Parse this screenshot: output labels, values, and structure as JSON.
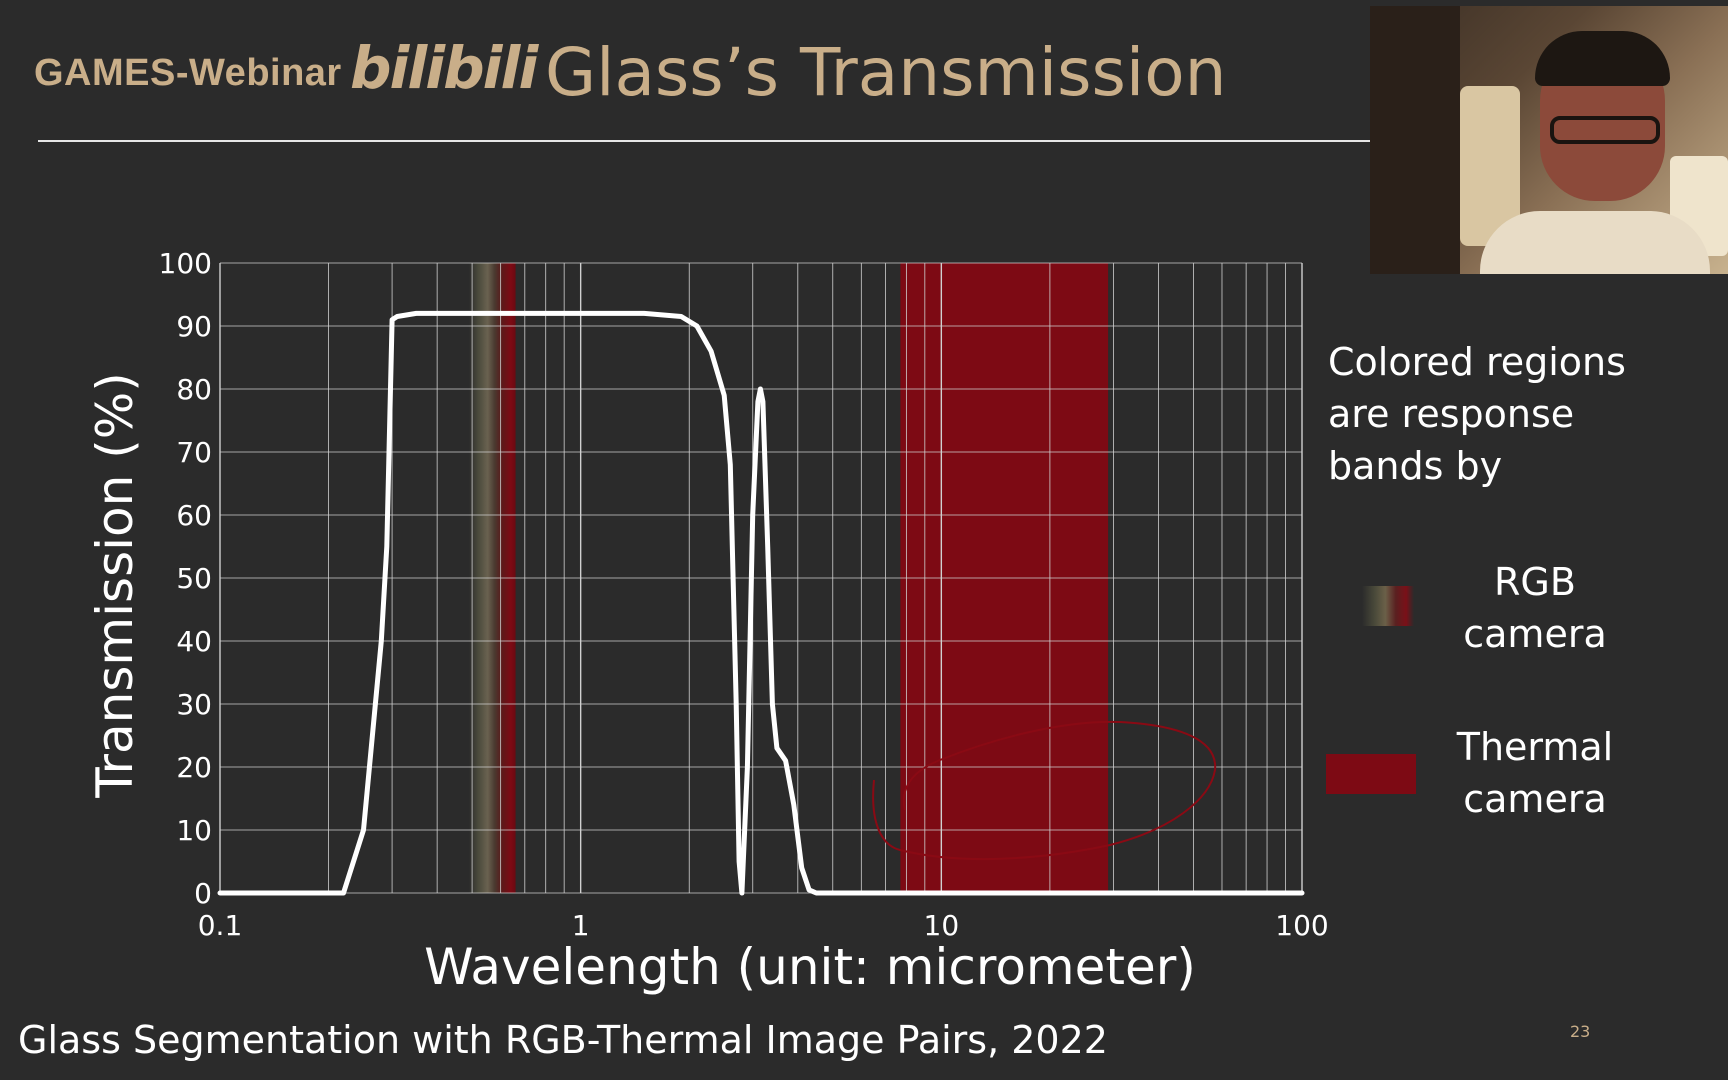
{
  "header": {
    "brand": "GAMES-Webinar",
    "logo": "bilibili",
    "title": "Glass’s Transmission"
  },
  "webcam": {
    "description_icon": "presenter-video-icon"
  },
  "legend": {
    "intro": [
      "Colored regions",
      "are response",
      "bands by"
    ],
    "rgb": [
      "RGB",
      "camera"
    ],
    "thermal": [
      "Thermal",
      "camera"
    ]
  },
  "footer": {
    "citation": "Glass Segmentation with RGB-Thermal Image Pairs, 2022",
    "page": "23"
  },
  "colors": {
    "accent": "#c9ae89",
    "thermal_band": "#7d0a14",
    "curve": "#ffffff",
    "grid": "#d0d0d0",
    "background": "#2b2b2b"
  },
  "chart_data": {
    "type": "line",
    "xscale": "log",
    "xlim": [
      0.1,
      100
    ],
    "ylim": [
      0,
      100
    ],
    "xticks": [
      0.1,
      1,
      10,
      100
    ],
    "xtick_labels": [
      "0.1",
      "1",
      "10",
      "100"
    ],
    "yticks": [
      0,
      10,
      20,
      30,
      40,
      50,
      60,
      70,
      80,
      90,
      100
    ],
    "ytick_labels": [
      "0",
      "10",
      "20",
      "30",
      "40",
      "50",
      "60",
      "70",
      "80",
      "90",
      "100"
    ],
    "xlabel": "Wavelength (unit: micrometer)",
    "ylabel": "Transmission (%)",
    "grid": true,
    "series": [
      {
        "x": [
          0.1,
          0.2,
          0.22,
          0.25,
          0.28,
          0.29,
          0.3,
          0.31,
          0.35,
          0.5,
          1.0,
          1.5,
          1.9,
          2.1,
          2.3,
          2.5,
          2.6,
          2.7,
          2.75,
          2.8,
          2.9,
          3.0,
          3.1,
          3.15,
          3.2,
          3.3,
          3.4,
          3.5,
          3.7,
          3.9,
          4.1,
          4.3,
          4.5,
          5.0,
          10,
          30,
          100
        ],
        "y": [
          0,
          0,
          0,
          10,
          40,
          55,
          91,
          91.5,
          92,
          92,
          92,
          92,
          91.5,
          90,
          86,
          79,
          68,
          30,
          5,
          0,
          20,
          60,
          78,
          80,
          78,
          55,
          30,
          23,
          21,
          14,
          4,
          0.5,
          0,
          0,
          0,
          0,
          0
        ]
      }
    ],
    "bands": [
      {
        "label": "RGB camera",
        "x0": 0.49,
        "x1": 0.66
      },
      {
        "label": "Thermal camera",
        "x0": 7.7,
        "x1": 29.0
      }
    ]
  }
}
